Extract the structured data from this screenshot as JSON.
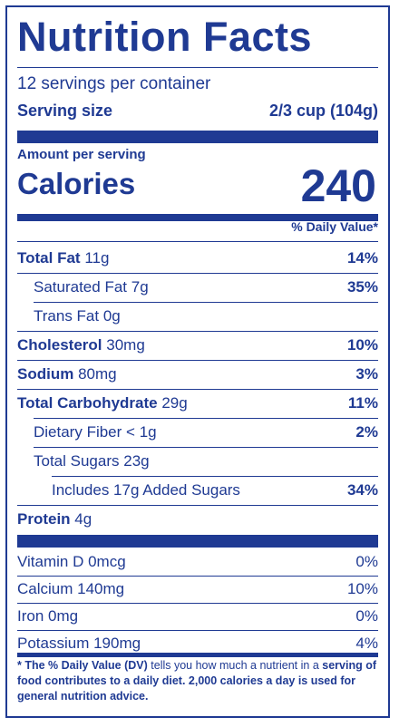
{
  "title": "Nutrition Facts",
  "servings_per_container": "12 servings per container",
  "serving_size_label": "Serving size",
  "serving_size_value": "2/3 cup (104g)",
  "amount_per_serving": "Amount per serving",
  "calories_label": "Calories",
  "calories_value": "240",
  "daily_value_header": "% Daily Value*",
  "nutrients": [
    {
      "name": "Total Fat",
      "amount": "11g",
      "dv": "14%"
    },
    {
      "name": "Saturated Fat",
      "amount": "7g",
      "dv": "35%"
    },
    {
      "name": "Trans Fat",
      "amount": "0g",
      "dv": ""
    },
    {
      "name": "Cholesterol",
      "amount": "30mg",
      "dv": "10%"
    },
    {
      "name": "Sodium",
      "amount": "80mg",
      "dv": "3%"
    },
    {
      "name": "Total Carbohydrate",
      "amount": "29g",
      "dv": "11%"
    },
    {
      "name": "Dietary Fiber",
      "amount": "< 1g",
      "dv": "2%"
    },
    {
      "name": "Total Sugars",
      "amount": "23g",
      "dv": ""
    },
    {
      "name": "Includes 17g Added Sugars",
      "amount": "",
      "dv": "34%"
    },
    {
      "name": "Protein",
      "amount": "4g",
      "dv": ""
    }
  ],
  "vitamins": [
    {
      "name": "Vitamin D 0mcg",
      "dv": "0%"
    },
    {
      "name": "Calcium 140mg",
      "dv": "10%"
    },
    {
      "name": "Iron 0mg",
      "dv": "0%"
    },
    {
      "name": "Potassium 190mg",
      "dv": "4%"
    }
  ],
  "footnote_bold_1": "* The % Daily Value (DV)",
  "footnote_normal": " tells you how much a nutrient in a ",
  "footnote_bold_2": "serving of food contributes to a daily diet. 2,000 calories a day is used for general nutrition advice.",
  "colors": {
    "ink": "#1f3a93"
  }
}
